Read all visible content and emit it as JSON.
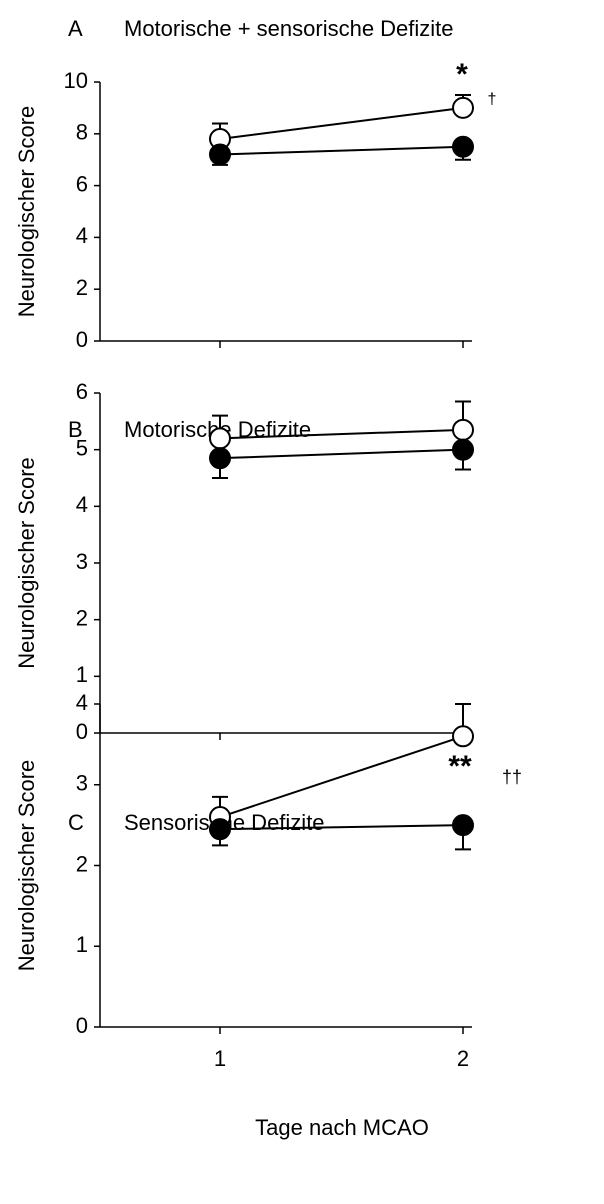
{
  "chart_data": [
    {
      "type": "line",
      "panel": "A",
      "title": "Motorische + sensorische Defizite",
      "ylabel": "Neurologischer Score",
      "categories": [
        null,
        null
      ],
      "series": [
        {
          "color": "#000000",
          "marker": "open",
          "values": [
            7.8,
            9.0
          ],
          "errors": [
            0.6,
            0.5
          ],
          "error_direction": "up"
        },
        {
          "color": "#000000",
          "marker": "filled",
          "values": [
            7.2,
            7.5
          ],
          "errors": [
            0.4,
            0.5
          ],
          "error_direction": "down"
        }
      ],
      "ylim": [
        0,
        10
      ],
      "yticks": [
        0,
        2,
        4,
        6,
        8,
        10
      ],
      "annotations": [
        "*",
        "†"
      ]
    },
    {
      "type": "line",
      "panel": "B",
      "title": "Motorische Defizite",
      "ylabel": "Neurologischer Score",
      "categories": [
        null,
        null
      ],
      "series": [
        {
          "color": "#000000",
          "marker": "open",
          "values": [
            5.2,
            5.35
          ],
          "errors": [
            0.4,
            0.5
          ],
          "error_direction": "up"
        },
        {
          "color": "#000000",
          "marker": "filled",
          "values": [
            4.85,
            5.0
          ],
          "errors": [
            0.35,
            0.35
          ],
          "error_direction": "down"
        }
      ],
      "ylim": [
        0,
        6
      ],
      "yticks": [
        0,
        1,
        2,
        3,
        4,
        5,
        6
      ]
    },
    {
      "type": "line",
      "panel": "C",
      "title": "Sensorische Defizite",
      "ylabel": "Neurologischer Score",
      "xlabel": "Tage nach MCAO",
      "categories": [
        "1",
        "2"
      ],
      "series": [
        {
          "color": "#000000",
          "marker": "open",
          "values": [
            2.6,
            3.6
          ],
          "errors": [
            0.25,
            0.4
          ],
          "error_direction": "up"
        },
        {
          "color": "#000000",
          "marker": "filled",
          "values": [
            2.45,
            2.5
          ],
          "errors": [
            0.2,
            0.3
          ],
          "error_direction": "down"
        }
      ],
      "ylim": [
        0,
        4
      ],
      "yticks": [
        0,
        1,
        2,
        3,
        4
      ],
      "annotations": [
        "**",
        "††"
      ]
    }
  ]
}
